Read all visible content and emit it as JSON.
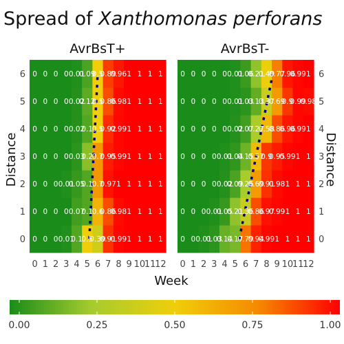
{
  "title": {
    "prefix": "Spread of ",
    "species": "Xanthomonas perforans"
  },
  "colors": {
    "low": "#1a8c1a",
    "q1": "#a6cc2e",
    "mid": "#f0ce0a",
    "q3": "#f58a00",
    "high": "#ff0000",
    "trend": "#000080"
  },
  "chart_data": {
    "type": "heatmap",
    "xlabel": "Week",
    "ylabel": "Distance",
    "x": [
      0,
      1,
      2,
      3,
      4,
      5,
      6,
      7,
      8,
      9,
      10,
      11,
      12
    ],
    "y": [
      0,
      1,
      2,
      3,
      4,
      5,
      6
    ],
    "xlim": [
      0,
      12
    ],
    "ylim": [
      0,
      6
    ],
    "legend": {
      "position": "bottom",
      "range": [
        0,
        1
      ],
      "ticks": [
        "0.00",
        "0.25",
        "0.50",
        "0.75",
        "1.00"
      ]
    },
    "panels": [
      {
        "name": "AvrBsT+",
        "y_axis_side": "left",
        "trend_line": [
          [
            5.2,
            0
          ],
          [
            6.0,
            6
          ]
        ],
        "values": [
          [
            0,
            0,
            0,
            0.01,
            0.1,
            0.5,
            0.39,
            0.91,
            0.99,
            1,
            1,
            1,
            1
          ],
          [
            0,
            0,
            0,
            0,
            0.07,
            0.1,
            0.6,
            0.86,
            0.98,
            1,
            1,
            1,
            1
          ],
          [
            0,
            0,
            0,
            0.01,
            0.05,
            0.1,
            0.7,
            0.97,
            1,
            1,
            1,
            1,
            1
          ],
          [
            0,
            0,
            0,
            0,
            0.03,
            0.2,
            0.7,
            0.95,
            0.99,
            1,
            1,
            1,
            1
          ],
          [
            0,
            0,
            0,
            0,
            0.02,
            0.1,
            0.5,
            0.92,
            0.99,
            1,
            1,
            1,
            1
          ],
          [
            0,
            0,
            0,
            0,
            0.02,
            0.12,
            0.5,
            0.86,
            0.98,
            1,
            1,
            1,
            1
          ],
          [
            0,
            0,
            0,
            0,
            0.01,
            0.09,
            0.5,
            0.89,
            0.96,
            1,
            1,
            1,
            1
          ]
        ]
      },
      {
        "name": "AvrBsT-",
        "y_axis_side": "right",
        "trend_line": [
          [
            5.4,
            0
          ],
          [
            8.6,
            6
          ]
        ],
        "values": [
          [
            0,
            0,
            0.01,
            0.03,
            0.14,
            0.17,
            0.79,
            0.94,
            0.99,
            1,
            1,
            1,
            1
          ],
          [
            0,
            0,
            0,
            0.01,
            0.05,
            0.21,
            0.36,
            0.86,
            0.97,
            0.99,
            1,
            1,
            1
          ],
          [
            0,
            0,
            0,
            0,
            0.02,
            0.09,
            0.26,
            0.69,
            0.91,
            0.98,
            1,
            1,
            1
          ],
          [
            0,
            0,
            0,
            0,
            0.01,
            0.04,
            0.15,
            0.57,
            0.9,
            0.95,
            0.99,
            1,
            1
          ],
          [
            0,
            0,
            0,
            0,
            0,
            0.02,
            0.07,
            0.27,
            0.58,
            0.86,
            0.96,
            0.99,
            1
          ],
          [
            0,
            0,
            0,
            0,
            0,
            0.01,
            0.03,
            0.13,
            0.37,
            0.69,
            0.9,
            0.99,
            0.98
          ],
          [
            0,
            0,
            0,
            0,
            0,
            0.01,
            0.06,
            0.21,
            0.49,
            0.77,
            0.96,
            0.99,
            1
          ]
        ]
      }
    ]
  }
}
